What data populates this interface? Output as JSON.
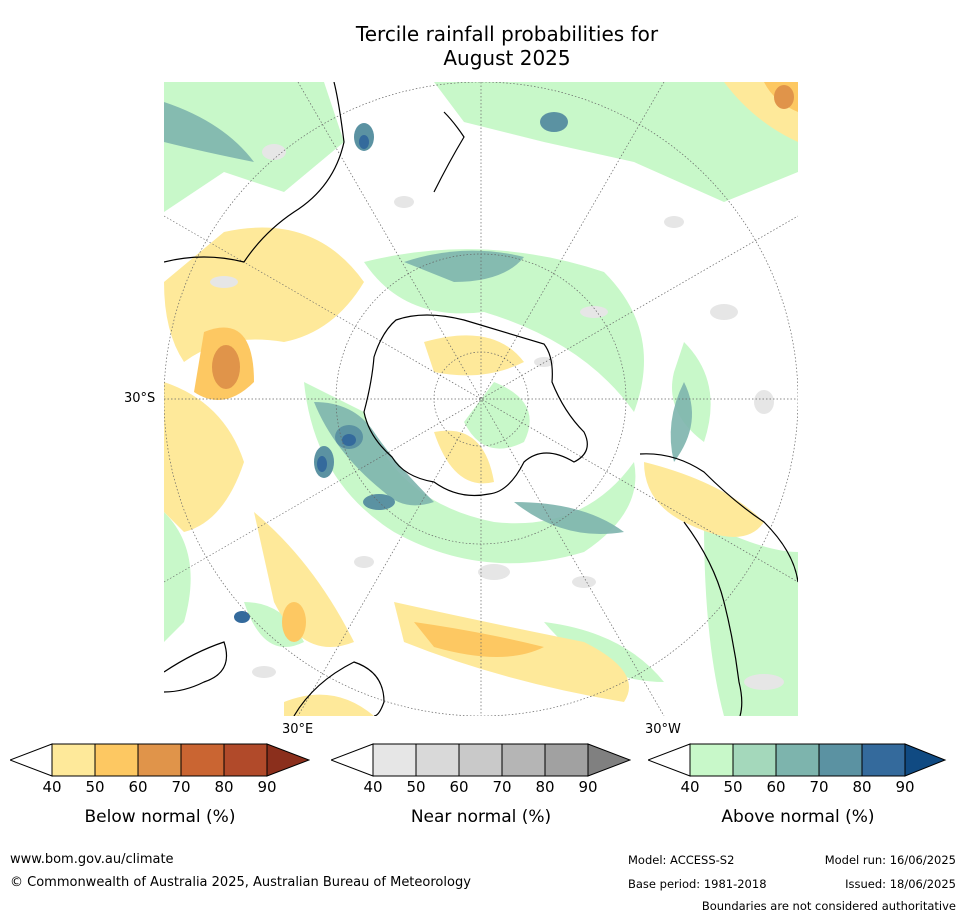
{
  "title": {
    "line1": "Tercile rainfall probabilities for",
    "line2": "August 2025"
  },
  "map": {
    "lat_label": "30°S",
    "lon_label_east": "30°E",
    "lon_label_west": "30°W"
  },
  "colorbars": [
    {
      "label": "Below normal (%)",
      "ticks": [
        "40",
        "50",
        "60",
        "70",
        "80",
        "90"
      ],
      "colors": [
        "#fee99a",
        "#fdc862",
        "#e0944a",
        "#ca6532",
        "#b14a2a",
        "#8b2f1c"
      ]
    },
    {
      "label": "Near normal (%)",
      "ticks": [
        "40",
        "50",
        "60",
        "70",
        "80",
        "90"
      ],
      "colors": [
        "#e6e6e6",
        "#d9d9d9",
        "#c9c9c9",
        "#b5b5b5",
        "#a1a1a1",
        "#808080"
      ]
    },
    {
      "label": "Above normal (%)",
      "ticks": [
        "40",
        "50",
        "60",
        "70",
        "80",
        "90"
      ],
      "colors": [
        "#c8f8c9",
        "#a4d8bb",
        "#7db4ad",
        "#5b92a2",
        "#346a9c",
        "#104a82"
      ]
    }
  ],
  "footer": {
    "website": "www.bom.gov.au/climate",
    "copyright": "© Commonwealth of Australia 2025, Australian Bureau of Meteorology",
    "model": "Model: ACCESS-S2",
    "model_run": "Model run: 16/06/2025",
    "base_period": "Base period: 1981-2018",
    "issued": "Issued: 18/06/2025",
    "disclaimer": "Boundaries are not considered authoritative"
  }
}
